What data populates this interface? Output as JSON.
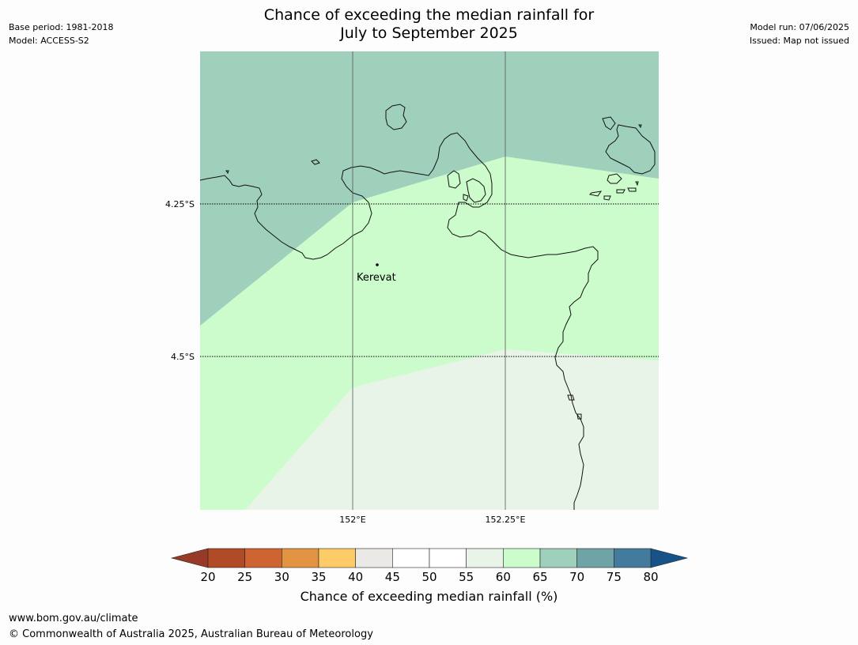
{
  "title": {
    "line1": "Chance of exceeding the median rainfall for",
    "line2": "July to September 2025"
  },
  "meta_left": {
    "base_period": "Base period: 1981-2018",
    "model": "Model: ACCESS-S2"
  },
  "meta_right": {
    "model_run": "Model run: 07/06/2025",
    "issued": "Issued: Map not issued"
  },
  "map": {
    "lat_labels": [
      "4.25°S",
      "4.5°S"
    ],
    "lon_labels": [
      "152°E",
      "152.25°E"
    ],
    "place_label": "Kerevat",
    "zones": [
      {
        "category": "65-70",
        "color": "#9fd0bb"
      },
      {
        "category": "60-65",
        "color": "#ccfccb"
      },
      {
        "category": "55-60",
        "color": "#e9f4e9"
      }
    ]
  },
  "colorbar": {
    "ticks": [
      "20",
      "25",
      "30",
      "35",
      "40",
      "45",
      "50",
      "55",
      "60",
      "65",
      "70",
      "75",
      "80"
    ],
    "colors": [
      "#b14a27",
      "#cd6432",
      "#e29443",
      "#fecb69",
      "#ebe9e5",
      "#ffffff",
      "#ffffff",
      "#e9f4e9",
      "#ccfccb",
      "#9fd0bb",
      "#6fa4a7",
      "#427b9b"
    ],
    "under_color": "#983a28",
    "over_color": "#175289",
    "label": "Chance of exceeding median rainfall (%)"
  },
  "footer": {
    "url": "www.bom.gov.au/climate",
    "copyright": "© Commonwealth of Australia 2025, Australian Bureau of Meteorology"
  }
}
